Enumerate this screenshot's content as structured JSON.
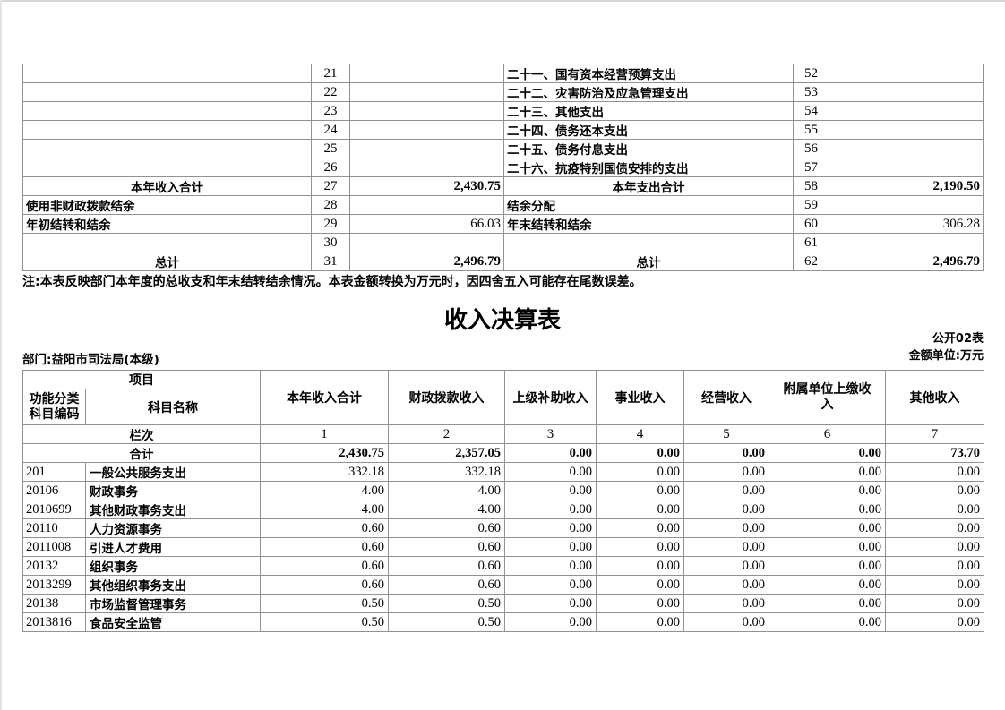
{
  "page": {
    "note": "注:本表反映部门本年度的总收支和年末结转结余情况。本表金额转换为万元时，因四舍五入可能存在尾数误差。",
    "title": "收入决算表",
    "department": "部门:益阳市司法局(本级)",
    "table_code": "公开02表",
    "unit": "金额单位:万元"
  },
  "colors": {
    "border": "#929292",
    "text": "#000000",
    "page_edge": "#d7d7d7"
  },
  "summary_table": {
    "left_rows": [
      {
        "label": "",
        "num": "21",
        "value": "",
        "emphasis": false
      },
      {
        "label": "",
        "num": "22",
        "value": "",
        "emphasis": false
      },
      {
        "label": "",
        "num": "23",
        "value": "",
        "emphasis": false
      },
      {
        "label": "",
        "num": "24",
        "value": "",
        "emphasis": false
      },
      {
        "label": "",
        "num": "25",
        "value": "",
        "emphasis": false
      },
      {
        "label": "",
        "num": "26",
        "value": "",
        "emphasis": false
      },
      {
        "label": "本年收入合计",
        "num": "27",
        "value": "2,430.75",
        "emphasis": true
      },
      {
        "label": "使用非财政拨款结余",
        "num": "28",
        "value": "",
        "emphasis": false
      },
      {
        "label": "年初结转和结余",
        "num": "29",
        "value": "66.03",
        "emphasis": false
      },
      {
        "label": "",
        "num": "30",
        "value": "",
        "emphasis": false
      },
      {
        "label": "总计",
        "num": "31",
        "value": "2,496.79",
        "emphasis": true
      }
    ],
    "right_rows": [
      {
        "label": "二十一、国有资本经营预算支出",
        "num": "52",
        "value": "",
        "emphasis": false
      },
      {
        "label": "二十二、灾害防治及应急管理支出",
        "num": "53",
        "value": "",
        "emphasis": false
      },
      {
        "label": "二十三、其他支出",
        "num": "54",
        "value": "",
        "emphasis": false
      },
      {
        "label": "二十四、债务还本支出",
        "num": "55",
        "value": "",
        "emphasis": false
      },
      {
        "label": "二十五、债务付息支出",
        "num": "56",
        "value": "",
        "emphasis": false
      },
      {
        "label": "二十六、抗疫特别国债安排的支出",
        "num": "57",
        "value": "",
        "emphasis": false
      },
      {
        "label": "本年支出合计",
        "num": "58",
        "value": "2,190.50",
        "emphasis": true
      },
      {
        "label": "结余分配",
        "num": "59",
        "value": "",
        "emphasis": false
      },
      {
        "label": "年末结转和结余",
        "num": "60",
        "value": "306.28",
        "emphasis": false
      },
      {
        "label": "",
        "num": "61",
        "value": "",
        "emphasis": false
      },
      {
        "label": "总计",
        "num": "62",
        "value": "2,496.79",
        "emphasis": true
      }
    ]
  },
  "income_table": {
    "header": {
      "project": "项目",
      "code_label": "功能分类科目编码",
      "subject_label": "科目名称",
      "columns": [
        "本年收入合计",
        "财政拨款收入",
        "上级补助收入",
        "事业收入",
        "经营收入",
        "附属单位上缴收入",
        "其他收入"
      ],
      "lanci": "栏次",
      "column_numbers": [
        "1",
        "2",
        "3",
        "4",
        "5",
        "6",
        "7"
      ]
    },
    "total_row": {
      "label": "合计",
      "values": [
        "2,430.75",
        "2,357.05",
        "0.00",
        "0.00",
        "0.00",
        "0.00",
        "73.70"
      ]
    },
    "rows": [
      {
        "code": "201",
        "name": "一般公共服务支出",
        "values": [
          "332.18",
          "332.18",
          "0.00",
          "0.00",
          "0.00",
          "0.00",
          "0.00"
        ]
      },
      {
        "code": "20106",
        "name": "财政事务",
        "values": [
          "4.00",
          "4.00",
          "0.00",
          "0.00",
          "0.00",
          "0.00",
          "0.00"
        ]
      },
      {
        "code": "2010699",
        "name": "其他财政事务支出",
        "values": [
          "4.00",
          "4.00",
          "0.00",
          "0.00",
          "0.00",
          "0.00",
          "0.00"
        ]
      },
      {
        "code": "20110",
        "name": "人力资源事务",
        "values": [
          "0.60",
          "0.60",
          "0.00",
          "0.00",
          "0.00",
          "0.00",
          "0.00"
        ]
      },
      {
        "code": "2011008",
        "name": "引进人才费用",
        "values": [
          "0.60",
          "0.60",
          "0.00",
          "0.00",
          "0.00",
          "0.00",
          "0.00"
        ]
      },
      {
        "code": "20132",
        "name": "组织事务",
        "values": [
          "0.60",
          "0.60",
          "0.00",
          "0.00",
          "0.00",
          "0.00",
          "0.00"
        ]
      },
      {
        "code": "2013299",
        "name": "其他组织事务支出",
        "values": [
          "0.60",
          "0.60",
          "0.00",
          "0.00",
          "0.00",
          "0.00",
          "0.00"
        ]
      },
      {
        "code": "20138",
        "name": "市场监督管理事务",
        "values": [
          "0.50",
          "0.50",
          "0.00",
          "0.00",
          "0.00",
          "0.00",
          "0.00"
        ]
      },
      {
        "code": "2013816",
        "name": "食品安全监管",
        "values": [
          "0.50",
          "0.50",
          "0.00",
          "0.00",
          "0.00",
          "0.00",
          "0.00"
        ]
      }
    ]
  }
}
